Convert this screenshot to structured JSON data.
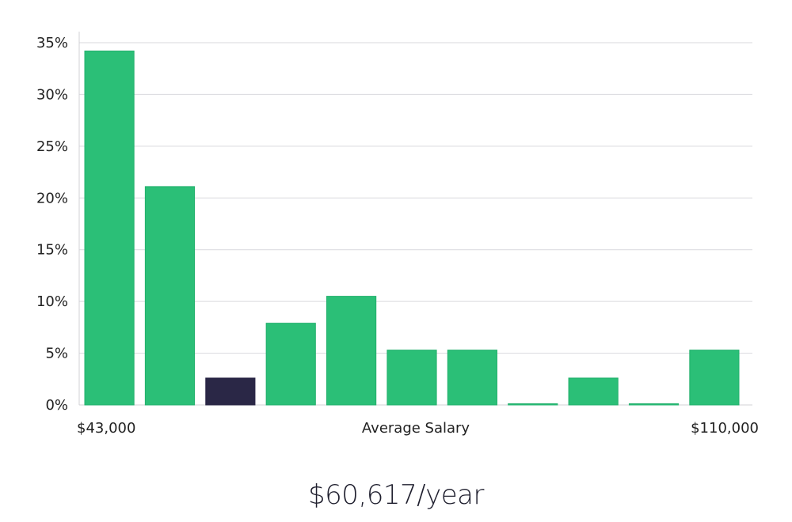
{
  "chart_data": {
    "type": "bar",
    "xlabel": "Average Salary",
    "x_min_label": "$43,000",
    "x_max_label": "$110,000",
    "y_tick_labels": [
      "0%",
      "5%",
      "10%",
      "15%",
      "20%",
      "25%",
      "30%",
      "35%"
    ],
    "ylim": [
      0,
      35
    ],
    "grid": true,
    "values": [
      34.2,
      21.1,
      2.6,
      7.9,
      10.5,
      5.3,
      5.3,
      0,
      2.6,
      0,
      5.3
    ],
    "highlight_index": 2,
    "colors": {
      "bar": "#2bbf77",
      "bar_stroke": "#22b06c",
      "highlight": "#2a2746"
    }
  },
  "summary": {
    "salary_text": "$60,617/year"
  }
}
